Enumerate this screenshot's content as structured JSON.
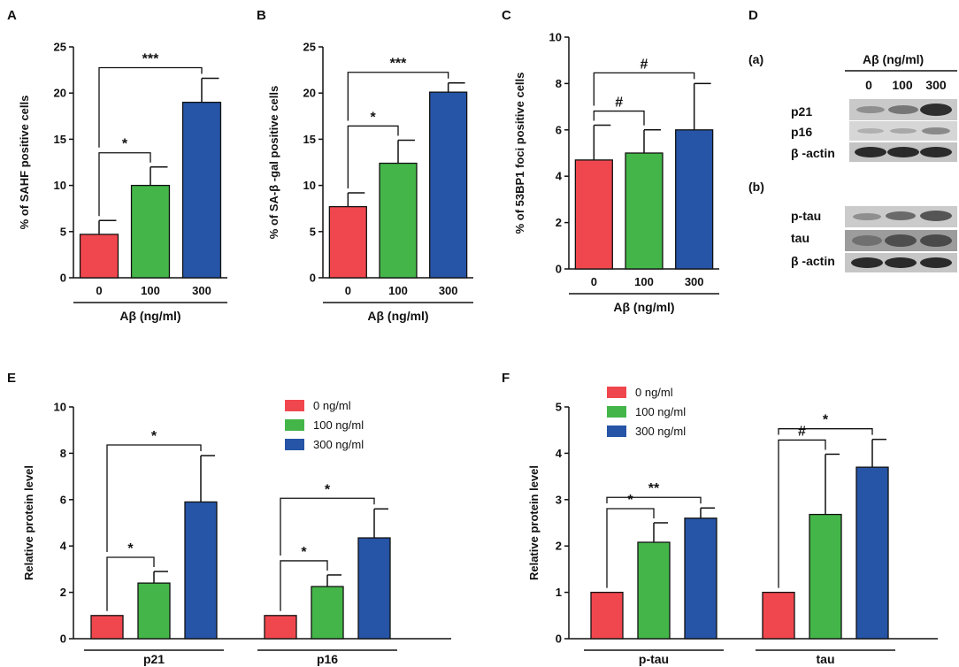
{
  "colors": {
    "c0": "#f0474e",
    "c100": "#44b649",
    "c300": "#2654a6"
  },
  "charts": [
    {
      "panel": "A",
      "type": "bar",
      "ylabel": "% of SAHF positive cells",
      "categories": [
        "0",
        "100",
        "300"
      ],
      "values": [
        4.7,
        10.0,
        19.0
      ],
      "errors": [
        1.5,
        2.0,
        2.6
      ],
      "ylim": [
        0,
        25
      ],
      "yticks": [
        "0",
        "5",
        "10",
        "15",
        "20",
        "25"
      ],
      "xlabel": "Aβ  (ng/ml)",
      "significance": [
        "*",
        "***"
      ]
    },
    {
      "panel": "B",
      "type": "bar",
      "ylabel": "% of SA-β -gal positive cells",
      "categories": [
        "0",
        "100",
        "300"
      ],
      "values": [
        7.7,
        12.4,
        20.1
      ],
      "errors": [
        1.5,
        2.5,
        1.0
      ],
      "ylim": [
        0,
        25
      ],
      "yticks": [
        "0",
        "5",
        "10",
        "15",
        "20",
        "25"
      ],
      "xlabel": "Aβ  (ng/ml)",
      "significance": [
        "*",
        "***"
      ]
    },
    {
      "panel": "C",
      "type": "bar",
      "ylabel": "% of 53BP1 foci positive cells",
      "categories": [
        "0",
        "100",
        "300"
      ],
      "values": [
        4.7,
        5.0,
        6.0
      ],
      "errors": [
        1.5,
        1.0,
        2.0
      ],
      "ylim": [
        0,
        10
      ],
      "yticks": [
        "0",
        "2",
        "4",
        "6",
        "8",
        "10"
      ],
      "xlabel": "Aβ  (ng/ml)",
      "significance": [
        "#",
        "#"
      ]
    },
    {
      "panel": "E",
      "type": "bar",
      "ylabel": "Relative protein level",
      "groups": [
        "p21",
        "p16"
      ],
      "series": [
        {
          "name": "0 ng/ml",
          "values": [
            1.0,
            1.0
          ],
          "errors": [
            0,
            0
          ]
        },
        {
          "name": "100 ng/ml",
          "values": [
            2.4,
            2.25
          ],
          "errors": [
            0.5,
            0.5
          ]
        },
        {
          "name": "300 ng/ml",
          "values": [
            5.9,
            4.35
          ],
          "errors": [
            2.0,
            1.25
          ]
        }
      ],
      "ylim": [
        0,
        10
      ],
      "yticks": [
        "0",
        "2",
        "4",
        "6",
        "8",
        "10"
      ],
      "significance": [
        "*",
        "*",
        "*",
        "*"
      ]
    },
    {
      "panel": "F",
      "type": "bar",
      "ylabel": "Relative protein level",
      "groups": [
        "p-tau",
        "tau"
      ],
      "series": [
        {
          "name": "0 ng/ml",
          "values": [
            1.0,
            1.0
          ],
          "errors": [
            0,
            0
          ]
        },
        {
          "name": "100 ng/ml",
          "values": [
            2.08,
            2.68
          ],
          "errors": [
            0.42,
            1.3
          ]
        },
        {
          "name": "300 ng/ml",
          "values": [
            2.6,
            3.7
          ],
          "errors": [
            0.22,
            0.6
          ]
        }
      ],
      "ylim": [
        0,
        5
      ],
      "yticks": [
        "0",
        "1",
        "2",
        "3",
        "4",
        "5"
      ],
      "significance": [
        "*",
        "**",
        "#",
        "*"
      ]
    }
  ],
  "blot": {
    "panel": "D",
    "sub_a": "(a)",
    "sub_b": "(b)",
    "header": "Aβ  (ng/ml)",
    "lanes": [
      "0",
      "100",
      "300"
    ],
    "rows_a": [
      "p21",
      "p16",
      "β -actin"
    ],
    "rows_b": [
      "p-tau",
      "tau",
      "β -actin"
    ]
  }
}
